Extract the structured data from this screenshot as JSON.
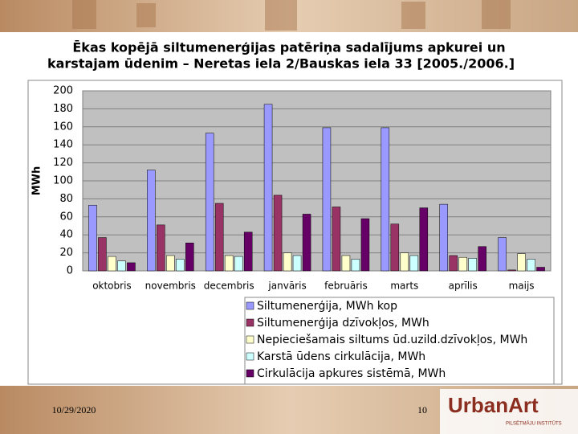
{
  "chart_data": {
    "type": "bar",
    "title_lines": [
      "Ēkas kopējā siltumenerģijas patēriņa sadalījums apkurei un",
      "karstajam ūdenim – Neretas iela 2/Bauskas iela 33 [2005./2006.]"
    ],
    "y_label": "MWh",
    "categories": [
      "oktobris",
      "novembris",
      "decembris",
      "janvāris",
      "februāris",
      "marts",
      "aprīlis",
      "maijs"
    ],
    "series": [
      {
        "name": "Siltumenerģija, MWh kop",
        "color": "#9999ff",
        "values": [
          73,
          112,
          153,
          185,
          159,
          159,
          74,
          37
        ]
      },
      {
        "name": "Siltumenerģija dzīvokļos, MWh",
        "color": "#993366",
        "values": [
          37,
          51,
          75,
          84,
          71,
          52,
          17,
          1
        ]
      },
      {
        "name": "Nepieciešamais siltums ūd.uzild.dzīvokļos, MWh",
        "color": "#ffffcc",
        "values": [
          16,
          17,
          17,
          20,
          17,
          20,
          15,
          19
        ]
      },
      {
        "name": "Karstā ūdens cirkulācija, MWh",
        "color": "#ccffff",
        "values": [
          11,
          13,
          16,
          17,
          13,
          17,
          14,
          13
        ]
      },
      {
        "name": "Cirkulācija apkures sistēmā, MWh",
        "color": "#660066",
        "values": [
          9,
          31,
          43,
          63,
          58,
          70,
          27,
          4
        ]
      }
    ],
    "ylim": [
      0,
      200
    ],
    "yticks": [
      0,
      20,
      40,
      60,
      80,
      100,
      120,
      140,
      160,
      180,
      200
    ],
    "grid": true
  },
  "footer": {
    "date": "10/29/2020",
    "page": "10",
    "logo": "UrbanArt",
    "logo_sub": "PILSĒTMĀJU INSTITŪTS"
  }
}
